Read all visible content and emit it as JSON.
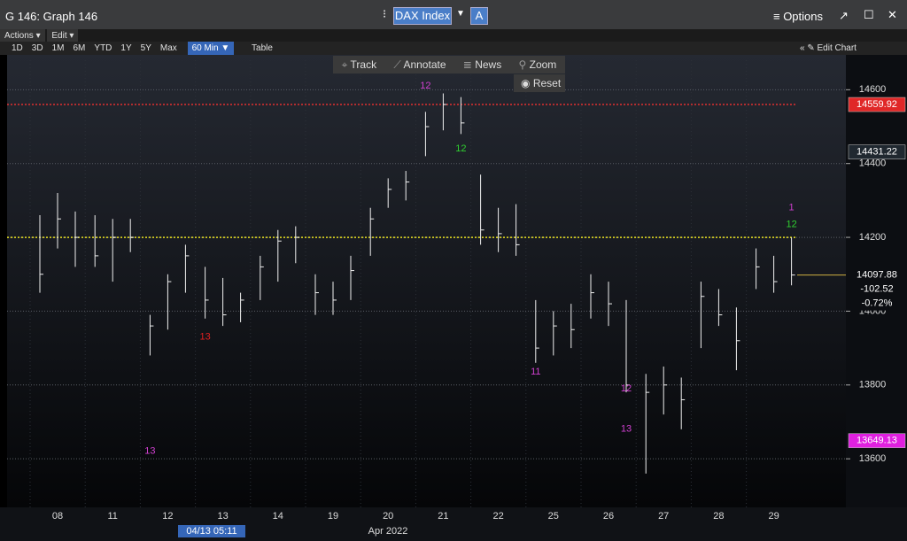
{
  "window": {
    "title": "G 146: Graph 146",
    "ticker": "DAX Index",
    "source": "A",
    "options": "≡ Options"
  },
  "menu": {
    "actions": "Actions ▾",
    "edit": "Edit ▾"
  },
  "ranges": [
    "1D",
    "3D",
    "1M",
    "6M",
    "YTD",
    "1Y",
    "5Y",
    "Max"
  ],
  "interval": "60 Min ▼",
  "table": "Table",
  "edit_chart": "« ✎ Edit Chart",
  "tools": [
    "Track",
    "Annotate",
    "News",
    "Zoom"
  ],
  "reset": "Reset",
  "chart_data": {
    "type": "ohlc",
    "categories": [
      "08",
      "11",
      "12",
      "13",
      "14",
      "19",
      "20",
      "21",
      "22",
      "25",
      "26",
      "27",
      "28",
      "29"
    ],
    "x_label": "Apr 2022",
    "cursor_label": "04/13 05:11",
    "high": [
      14260,
      14320,
      14270,
      14260,
      14250,
      14250,
      13990,
      14100,
      14180,
      14120,
      14090,
      14050,
      14150,
      14220,
      14230,
      14100,
      14080,
      14150,
      14280,
      14360,
      14380,
      14540,
      14590,
      14580,
      14370,
      14280,
      14290,
      14030,
      14000,
      14020,
      14100,
      14080,
      14030,
      13830,
      13850,
      13820,
      14080,
      14060,
      14010,
      14170,
      14150,
      14200
    ],
    "low": [
      14050,
      14170,
      14120,
      14120,
      14080,
      14160,
      13880,
      13950,
      14050,
      13980,
      13960,
      13970,
      14030,
      14080,
      14130,
      13990,
      13990,
      14030,
      14150,
      14280,
      14300,
      14420,
      14490,
      14480,
      14180,
      14160,
      14150,
      13860,
      13880,
      13900,
      13980,
      13960,
      13780,
      13560,
      13720,
      13680,
      13900,
      13960,
      13840,
      14060,
      14050,
      14070
    ],
    "close": [
      14100,
      14250,
      14200,
      14150,
      14200,
      14200,
      13960,
      14080,
      14150,
      14030,
      13990,
      14030,
      14120,
      14190,
      14200,
      14050,
      14030,
      14110,
      14250,
      14330,
      14350,
      14500,
      14560,
      14510,
      14220,
      14210,
      14180,
      13900,
      13960,
      13950,
      14050,
      14020,
      13800,
      13780,
      13800,
      13760,
      14040,
      13990,
      13920,
      14120,
      14080,
      14098
    ],
    "bars_per_day": 3,
    "ylim": [
      13490,
      14632
    ],
    "yticks": [
      13600,
      13800,
      14000,
      14200,
      14400,
      14600
    ],
    "grid": true,
    "levels": [
      {
        "value": 14559.92,
        "color": "#e03030"
      },
      {
        "value": 14200,
        "color": "#e8e020"
      }
    ],
    "price_labels": [
      {
        "value": 14559.92,
        "color": "#e02828",
        "text_color": "#ffffff"
      },
      {
        "value": 14431.22,
        "color": "#202830",
        "text_color": "#ffffff"
      },
      {
        "value": 13649.13,
        "color": "#e020e0",
        "text_color": "#ffffff"
      }
    ],
    "last": {
      "value": 14097.88,
      "change": "-102.52",
      "change_pct": "-0.72%"
    },
    "annotations": [
      {
        "text": "13",
        "color": "#d040d0",
        "bar": 6,
        "price": 13620,
        "big": true
      },
      {
        "text": "13",
        "color": "#e02020",
        "bar": 9,
        "price": 13930,
        "big": true
      },
      {
        "text": "13",
        "color": "#d040d0",
        "bar": 32,
        "price": 13680,
        "big": true
      },
      {
        "text": "12",
        "color": "#d040d0",
        "bar": 32,
        "price": 13790,
        "big": false
      },
      {
        "text": "11",
        "color": "#d040d0",
        "bar": 27,
        "price": 13835,
        "big": false
      },
      {
        "text": "12",
        "color": "#d040d0",
        "bar": 21,
        "price": 14610,
        "big": false
      },
      {
        "text": "12",
        "color": "#30d030",
        "bar": 23,
        "price": 14440,
        "big": false
      },
      {
        "text": "1",
        "color": "#d040d0",
        "bar": 41,
        "price": 14280,
        "big": false
      },
      {
        "text": "12",
        "color": "#30d030",
        "bar": 41,
        "price": 14235,
        "big": false
      }
    ]
  }
}
